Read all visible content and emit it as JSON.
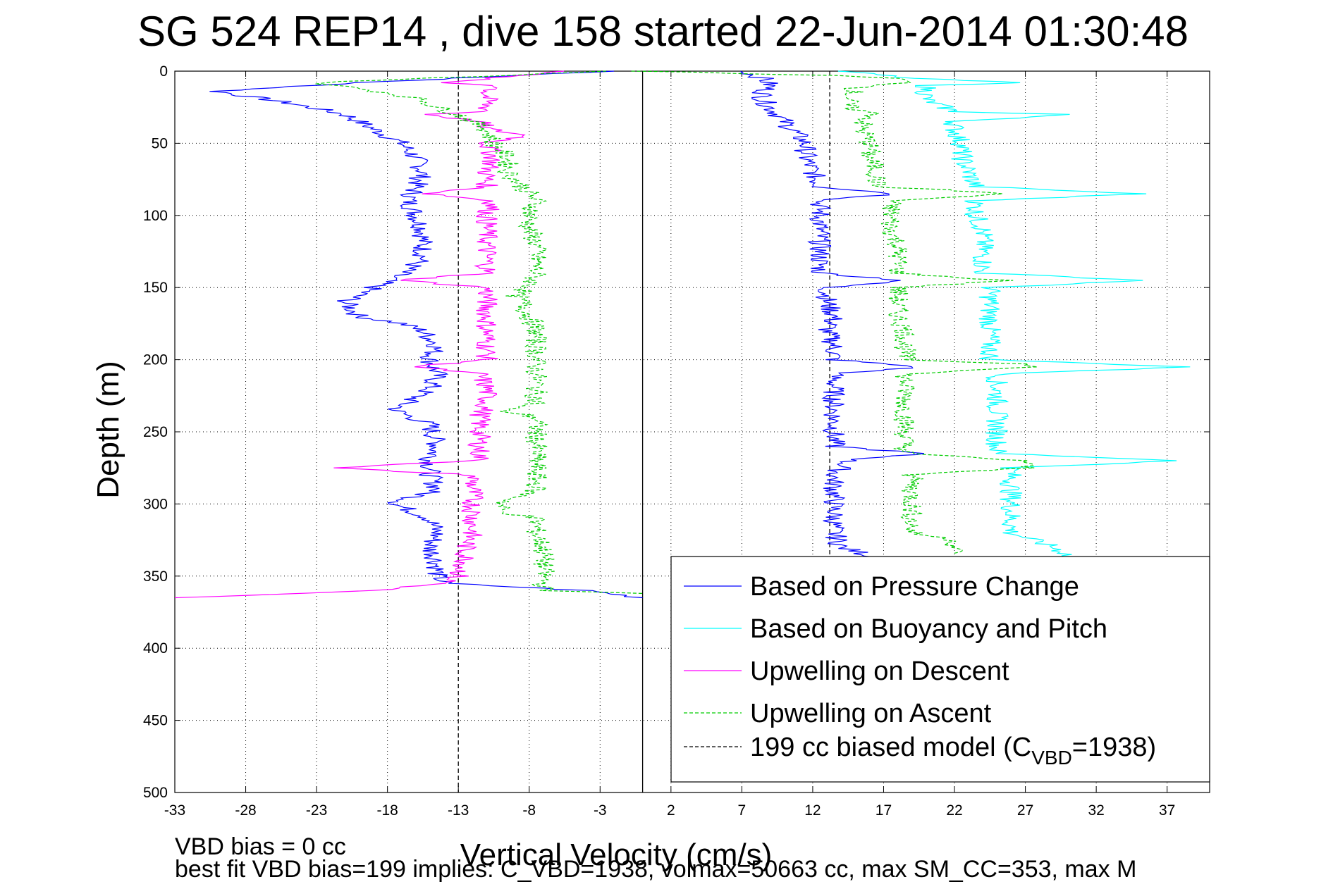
{
  "chart_data": {
    "type": "line",
    "title": "SG 524   REP14  , dive 158 started 22-Jun-2014 01:30:48",
    "xlabel": "Vertical Velocity (cm/s)",
    "ylabel": "Depth (m)",
    "xlim": [
      -33,
      40
    ],
    "ylim": [
      0,
      500
    ],
    "y_reversed": true,
    "grid": true,
    "x_ticks": [
      -33,
      -28,
      -23,
      -18,
      -13,
      -8,
      -3,
      2,
      7,
      12,
      17,
      22,
      27,
      32,
      37
    ],
    "y_ticks": [
      0,
      50,
      100,
      150,
      200,
      250,
      300,
      350,
      400,
      450,
      500
    ],
    "legend_position": "bottom-right",
    "vertical_lines": [
      {
        "x": 0,
        "style": "solid",
        "color": "#000000"
      },
      {
        "x": -13,
        "style": "dashed",
        "color": "#000000",
        "y_range": [
          0,
          500
        ]
      },
      {
        "x": 13.2,
        "style": "dashed",
        "color": "#000000",
        "y_range": [
          0,
          350
        ]
      }
    ],
    "series": [
      {
        "name": "Based on Pressure Change",
        "color": "#0000ff",
        "style": "solid",
        "depth": [
          0,
          8,
          14,
          22,
          30,
          40,
          50,
          60,
          70,
          80,
          90,
          100,
          110,
          120,
          130,
          140,
          150,
          160,
          170,
          175,
          180,
          190,
          200,
          210,
          220,
          235,
          245,
          260,
          270,
          280,
          290,
          300,
          310,
          320,
          330,
          340,
          350,
          355,
          360,
          365
        ],
        "velocity": [
          -2,
          -20,
          -30,
          -25,
          -21,
          -19,
          -17,
          -16,
          -15.5,
          -16,
          -16.5,
          -16,
          -15.5,
          -15.5,
          -15.5,
          -17,
          -19,
          -21,
          -20,
          -17,
          -15.5,
          -14.5,
          -15,
          -14.5,
          -15,
          -17.5,
          -15,
          -14.5,
          -15,
          -15,
          -14.5,
          -17.5,
          -15,
          -14.5,
          -15,
          -14.5,
          -14.5,
          -14,
          -4,
          0
        ]
      },
      {
        "name": "Based on Pressure Change",
        "color": "#0000ff",
        "style": "solid",
        "depth": [
          0,
          5,
          10,
          15,
          20,
          30,
          40,
          50,
          60,
          70,
          80,
          85,
          90,
          100,
          110,
          120,
          130,
          140,
          145,
          150,
          160,
          170,
          180,
          190,
          200,
          205,
          210,
          220,
          230,
          240,
          250,
          260,
          265,
          270,
          280,
          290,
          300,
          310,
          320,
          330,
          337,
          340,
          345
        ],
        "velocity": [
          7,
          8.5,
          9,
          8.5,
          8.5,
          9.5,
          10.5,
          11.5,
          11.5,
          12,
          12.5,
          18,
          12.5,
          12.5,
          12.5,
          12.5,
          12.5,
          12.5,
          18.5,
          13,
          13,
          13.5,
          13,
          13.5,
          13.5,
          19.5,
          13.5,
          13.5,
          13.5,
          13.5,
          13.5,
          13.5,
          19.5,
          14.5,
          13.5,
          13.5,
          13.5,
          13.5,
          13.5,
          14,
          16.5,
          15,
          16
        ]
      },
      {
        "name": "Based on Buoyancy and Pitch",
        "color": "#00ffff",
        "style": "solid",
        "depth": [
          0,
          5,
          8,
          10,
          15,
          20,
          28,
          30,
          35,
          40,
          50,
          60,
          70,
          80,
          85,
          90,
          100,
          110,
          120,
          130,
          140,
          145,
          150,
          160,
          170,
          180,
          190,
          200,
          205,
          210,
          220,
          230,
          240,
          250,
          260,
          265,
          270,
          275,
          280,
          290,
          300,
          310,
          320,
          330,
          335,
          340
        ],
        "velocity": [
          14,
          19,
          26.5,
          20,
          20,
          20,
          22,
          30,
          22,
          22,
          22.5,
          22.5,
          23,
          23.5,
          35,
          23.5,
          23.5,
          24,
          24,
          24,
          24,
          35.5,
          24.5,
          24.5,
          24.5,
          24.5,
          24.5,
          24.5,
          38.5,
          25,
          25,
          25,
          25,
          25,
          25,
          25,
          38,
          26,
          26,
          26,
          26,
          26,
          26,
          29,
          30,
          29
        ]
      },
      {
        "name": "Upwelling on Descent",
        "color": "#ff00ff",
        "style": "solid",
        "depth": [
          0,
          3,
          8,
          10,
          15,
          20,
          28,
          30,
          35,
          40,
          45,
          50,
          60,
          70,
          80,
          85,
          90,
          100,
          110,
          120,
          130,
          140,
          145,
          150,
          160,
          170,
          180,
          190,
          200,
          205,
          210,
          220,
          230,
          240,
          250,
          260,
          270,
          275,
          280,
          290,
          300,
          310,
          320,
          330,
          340,
          350,
          355,
          360,
          365
        ],
        "velocity": [
          -5,
          -9,
          -14,
          -10,
          -11,
          -11,
          -11,
          -15,
          -11.5,
          -11,
          -8,
          -11,
          -10.5,
          -11,
          -11,
          -15,
          -10.5,
          -11,
          -11,
          -11,
          -11,
          -11,
          -17,
          -11,
          -11,
          -11,
          -11,
          -11,
          -11,
          -16,
          -11.5,
          -11,
          -11,
          -11.5,
          -11.5,
          -11.5,
          -11.5,
          -22,
          -12,
          -12,
          -12,
          -12,
          -12,
          -12.5,
          -12.5,
          -13,
          -14,
          -19,
          -33
        ]
      },
      {
        "name": "Upwelling on Ascent",
        "color": "#00cc00",
        "style": "dashed",
        "depth": [
          0,
          3,
          8,
          15,
          20,
          25,
          30,
          35,
          40,
          50,
          60,
          70,
          80,
          85,
          90,
          100,
          110,
          120,
          130,
          140,
          150,
          155,
          160,
          170,
          180,
          190,
          200,
          210,
          220,
          230,
          235,
          240,
          250,
          260,
          270,
          280,
          290,
          300,
          305,
          310,
          320,
          330,
          340,
          350,
          360,
          362
        ],
        "velocity": [
          -3,
          -10,
          -23,
          -18,
          -15.5,
          -14.5,
          -13,
          -12,
          -11,
          -10.5,
          -9.5,
          -9.5,
          -8.5,
          -8,
          -7.5,
          -8,
          -8,
          -7.5,
          -7.5,
          -7.5,
          -8,
          -9,
          -8.5,
          -8,
          -7.5,
          -7.5,
          -7.5,
          -7.5,
          -7.5,
          -7.5,
          -10,
          -7.5,
          -7.5,
          -7.5,
          -7.5,
          -7.5,
          -7.5,
          -10,
          -10,
          -7.5,
          -7.5,
          -7,
          -7,
          -7,
          -7,
          0
        ]
      },
      {
        "name": "Upwelling on Ascent",
        "color": "#00cc00",
        "style": "dashed",
        "depth": [
          0,
          3,
          5,
          8,
          12,
          20,
          25,
          30,
          35,
          40,
          50,
          60,
          70,
          80,
          83,
          85,
          90,
          100,
          110,
          120,
          130,
          140,
          143,
          145,
          150,
          160,
          170,
          180,
          190,
          200,
          203,
          205,
          210,
          220,
          230,
          240,
          250,
          260,
          265,
          270,
          275,
          280,
          290,
          300,
          310,
          320,
          325,
          330,
          335
        ],
        "velocity": [
          0,
          13,
          18,
          18.5,
          15,
          14.5,
          14.5,
          16.5,
          15.5,
          15.5,
          16,
          16,
          16.5,
          16.5,
          22.5,
          25.5,
          17.5,
          17.5,
          17.5,
          18,
          18,
          18,
          22,
          26,
          18,
          18,
          18,
          18.5,
          18.5,
          18.5,
          27,
          28,
          18.5,
          18.5,
          18.5,
          18.5,
          18.5,
          18.5,
          18.5,
          27,
          27,
          19,
          19,
          19,
          19,
          19,
          22,
          22,
          22
        ]
      },
      {
        "name": "199 cc biased model (C",
        "name_sub": "VBD",
        "name_tail": "=1938)",
        "color": "#000000",
        "style": "dashed",
        "legend_only": true
      }
    ]
  },
  "footer": {
    "line1": "VBD bias = 0 cc",
    "line2": "best fit VBD bias=199 implies: C_VBD=1938, volmax=50663 cc, max SM_CC=353, max M"
  }
}
